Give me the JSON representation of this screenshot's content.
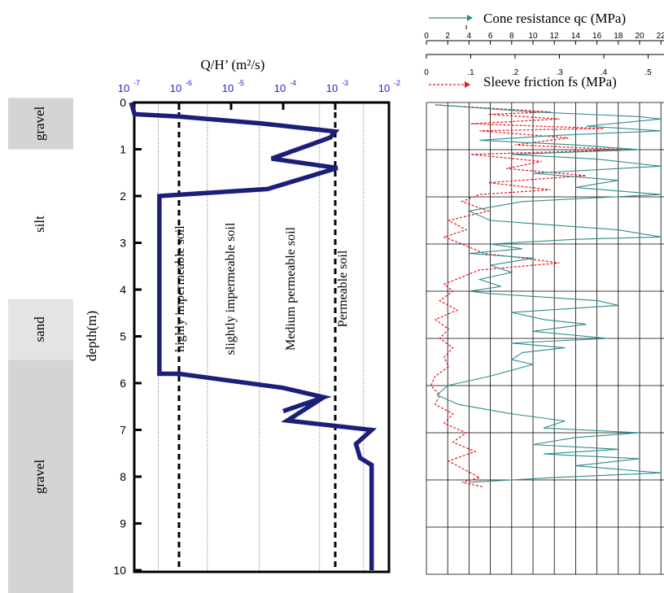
{
  "chart_data": [
    {
      "type": "line",
      "title": "Q/H’  (m²/s)",
      "ylabel": "depth(m)",
      "xscale": "log",
      "xlim": [
        1e-07,
        0.01
      ],
      "ylim": [
        10,
        0
      ],
      "x_tick_labels": [
        {
          "value": 1e-07,
          "base": "10",
          "exp": "-7"
        },
        {
          "value": 1e-06,
          "base": "10",
          "exp": "-6"
        },
        {
          "value": 1e-05,
          "base": "10",
          "exp": "-5"
        },
        {
          "value": 0.0001,
          "base": "10",
          "exp": "-4"
        },
        {
          "value": 0.001,
          "base": "10",
          "exp": "-3"
        },
        {
          "value": 0.01,
          "base": "10",
          "exp": "-2"
        }
      ],
      "y_ticks": [
        0,
        1,
        2,
        3,
        4,
        5,
        6,
        7,
        8,
        9,
        10
      ],
      "layers": [
        {
          "label": "gravel",
          "from": -0.1,
          "to": 1.0
        },
        {
          "label": "silt",
          "from": 1.0,
          "to": 4.2
        },
        {
          "label": "sand",
          "from": 4.2,
          "to": 5.5
        },
        {
          "label": "gravel",
          "from": 5.5,
          "to": 10.5
        }
      ],
      "zone_labels": [
        {
          "text": "highly impermeable soil",
          "x_from": 4e-07,
          "x_to": 2.5e-06
        },
        {
          "text": "slightly impermeable soil",
          "x_from": 2.5e-06,
          "x_to": 3.5e-05
        },
        {
          "text": "Medium permeable soil",
          "x_from": 3.5e-05,
          "x_to": 0.0005
        },
        {
          "text": "Permeable soil",
          "x_from": 0.0005,
          "x_to": 0.0035
        }
      ],
      "boundaries_dashed": [
        1e-06,
        0.001
      ],
      "boundaries_dotted": [
        4e-07,
        3.5e-06,
        3.5e-05,
        0.0005,
        0.0035
      ],
      "series": [
        {
          "color": "#1a1f7a",
          "points": [
            [
              1.2e-07,
              0.0
            ],
            [
              1.4e-07,
              0.25
            ],
            [
              1e-06,
              0.3
            ],
            [
              4e-05,
              0.45
            ],
            [
              0.001,
              0.62
            ],
            [
              0.0008,
              0.75
            ],
            [
              6e-05,
              1.2
            ],
            [
              0.0011,
              1.4
            ],
            [
              5e-05,
              1.85
            ],
            [
              4.2e-07,
              2.0
            ],
            [
              4.2e-07,
              5.8
            ],
            [
              1e-06,
              5.8
            ],
            [
              0.0001,
              6.1
            ],
            [
              0.0006,
              6.3
            ],
            [
              0.0001,
              6.6
            ],
            [
              0.0006,
              6.3
            ],
            [
              0.00012,
              6.8
            ],
            [
              0.005,
              7.0
            ],
            [
              0.0025,
              7.3
            ],
            [
              0.003,
              7.6
            ],
            [
              0.005,
              7.75
            ],
            [
              0.005,
              10.0
            ]
          ]
        }
      ]
    },
    {
      "type": "line",
      "ylim": [
        10,
        0
      ],
      "legend_placement": "top",
      "top_axis": {
        "label": "Cone resistance qc (MPa)",
        "min": 0,
        "max": 22,
        "tick_labels": [
          "0",
          "2",
          "4",
          "6",
          "8",
          "10",
          "12",
          "14",
          "16",
          "18",
          "20",
          "22"
        ]
      },
      "bottom_axis": {
        "label": "Sleeve friction fs (MPa)",
        "min": 0,
        "max": 0.55,
        "tick_labels": [
          "0",
          ".1",
          ".2",
          ".3",
          ".4",
          ".5"
        ]
      },
      "grid": true,
      "series": [
        {
          "name": "Cone resistance qc (MPa)",
          "color": "#2e8b8b",
          "axis": "top",
          "points": [
            [
              1.0,
              0.05
            ],
            [
              10,
              0.2
            ],
            [
              20,
              0.3
            ],
            [
              22,
              0.35
            ],
            [
              15,
              0.5
            ],
            [
              22,
              0.6
            ],
            [
              12,
              0.7
            ],
            [
              5,
              0.8
            ],
            [
              14,
              0.9
            ],
            [
              20,
              1.0
            ],
            [
              8,
              1.1
            ],
            [
              16,
              1.2
            ],
            [
              22,
              1.35
            ],
            [
              10,
              1.5
            ],
            [
              18,
              1.65
            ],
            [
              14,
              1.8
            ],
            [
              22,
              1.95
            ],
            [
              9,
              2.1
            ],
            [
              4,
              2.3
            ],
            [
              6,
              2.5
            ],
            [
              18,
              2.7
            ],
            [
              22,
              2.85
            ],
            [
              14,
              2.9
            ],
            [
              6,
              3.0
            ],
            [
              9,
              3.1
            ],
            [
              4,
              3.2
            ],
            [
              10,
              3.3
            ],
            [
              6,
              3.45
            ],
            [
              8,
              3.6
            ],
            [
              5,
              3.75
            ],
            [
              7,
              3.9
            ],
            [
              4,
              4.0
            ],
            [
              6,
              4.05
            ],
            [
              16,
              4.2
            ],
            [
              18,
              4.3
            ],
            [
              8,
              4.45
            ],
            [
              11,
              4.6
            ],
            [
              15,
              4.7
            ],
            [
              10,
              4.85
            ],
            [
              17,
              5.0
            ],
            [
              8,
              5.1
            ],
            [
              13,
              5.2
            ],
            [
              9,
              5.3
            ],
            [
              8,
              5.45
            ],
            [
              10,
              5.55
            ],
            [
              6,
              5.8
            ],
            [
              2,
              6.0
            ],
            [
              1,
              6.2
            ],
            [
              3,
              6.4
            ],
            [
              8,
              6.6
            ],
            [
              13,
              6.75
            ],
            [
              11,
              6.9
            ],
            [
              20,
              7.0
            ],
            [
              14,
              7.1
            ],
            [
              10,
              7.25
            ],
            [
              18,
              7.35
            ],
            [
              11,
              7.45
            ],
            [
              20,
              7.55
            ],
            [
              14,
              7.7
            ],
            [
              22,
              7.85
            ],
            [
              12,
              7.95
            ],
            [
              4,
              8.05
            ]
          ]
        },
        {
          "name": "Sleeve friction fs (MPa)",
          "color": "#e8141a",
          "axis": "bottom",
          "points": [
            [
              0.02,
              0.05
            ],
            [
              0.28,
              0.2
            ],
            [
              0.14,
              0.25
            ],
            [
              0.3,
              0.35
            ],
            [
              0.1,
              0.45
            ],
            [
              0.4,
              0.55
            ],
            [
              0.12,
              0.6
            ],
            [
              0.32,
              0.75
            ],
            [
              0.2,
              0.9
            ],
            [
              0.45,
              1.0
            ],
            [
              0.1,
              1.1
            ],
            [
              0.26,
              1.25
            ],
            [
              0.18,
              1.4
            ],
            [
              0.36,
              1.55
            ],
            [
              0.14,
              1.7
            ],
            [
              0.28,
              1.85
            ],
            [
              0.12,
              1.95
            ],
            [
              0.08,
              2.1
            ],
            [
              0.14,
              2.3
            ],
            [
              0.05,
              2.5
            ],
            [
              0.09,
              2.7
            ],
            [
              0.04,
              2.85
            ],
            [
              0.08,
              3.0
            ],
            [
              0.13,
              3.2
            ],
            [
              0.22,
              3.3
            ],
            [
              0.3,
              3.4
            ],
            [
              0.12,
              3.55
            ],
            [
              0.08,
              3.7
            ],
            [
              0.04,
              3.85
            ],
            [
              0.06,
              4.0
            ],
            [
              0.03,
              4.2
            ],
            [
              0.07,
              4.4
            ],
            [
              0.02,
              4.6
            ],
            [
              0.05,
              4.8
            ],
            [
              0.03,
              5.0
            ],
            [
              0.06,
              5.2
            ],
            [
              0.04,
              5.4
            ],
            [
              0.05,
              5.6
            ],
            [
              0.02,
              5.8
            ],
            [
              0.01,
              6.0
            ],
            [
              0.03,
              6.2
            ],
            [
              0.02,
              6.4
            ],
            [
              0.06,
              6.6
            ],
            [
              0.04,
              6.8
            ],
            [
              0.09,
              7.0
            ],
            [
              0.06,
              7.2
            ],
            [
              0.11,
              7.4
            ],
            [
              0.05,
              7.6
            ],
            [
              0.09,
              7.8
            ],
            [
              0.12,
              7.95
            ],
            [
              0.08,
              8.05
            ],
            [
              0.13,
              8.15
            ]
          ]
        }
      ]
    }
  ]
}
